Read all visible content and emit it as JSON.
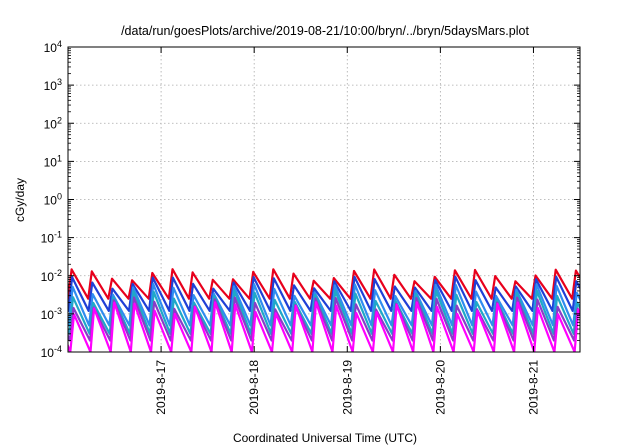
{
  "chart_data": {
    "type": "line",
    "title": "/data/run/goesPlots/archive/2019-08-21/10:00/bryn/../bryn/5daysMars.plot",
    "xlabel": "Coordinated Universal Time (UTC)",
    "ylabel": "cGy/day",
    "x_range": [
      "2019-08-16T00:00",
      "2019-08-21T12:00"
    ],
    "x_ticks": [
      "2019-8-17",
      "2019-8-18",
      "2019-8-19",
      "2019-8-20",
      "2019-8-21"
    ],
    "y_scale": "log",
    "ylim": [
      0.0001,
      10000
    ],
    "y_tick_bases": [
      "10",
      "10",
      "10",
      "10",
      "10",
      "10",
      "10",
      "10",
      "10"
    ],
    "y_tick_exponents": [
      "-4",
      "-3",
      "-2",
      "-1",
      "0",
      "1",
      "2",
      "3",
      "4"
    ],
    "grid": true,
    "legend": "none",
    "colors": [
      "#e8001c",
      "#1f3fd6",
      "#2f8cf0",
      "#1fa8c8",
      "#8a3cc8",
      "#ff00ff"
    ],
    "series_shape": {
      "description": "sawtooth pulses, roughly every 5.2 hours, shared by all series",
      "pulse_period_hours": 5.2,
      "peak_values": [
        0.011,
        0.007,
        0.0045,
        0.003,
        0.002,
        0.0015
      ],
      "trough_values": [
        0.0025,
        0.0012,
        0.0005,
        0.0003,
        0.0002,
        0.0001
      ]
    }
  }
}
